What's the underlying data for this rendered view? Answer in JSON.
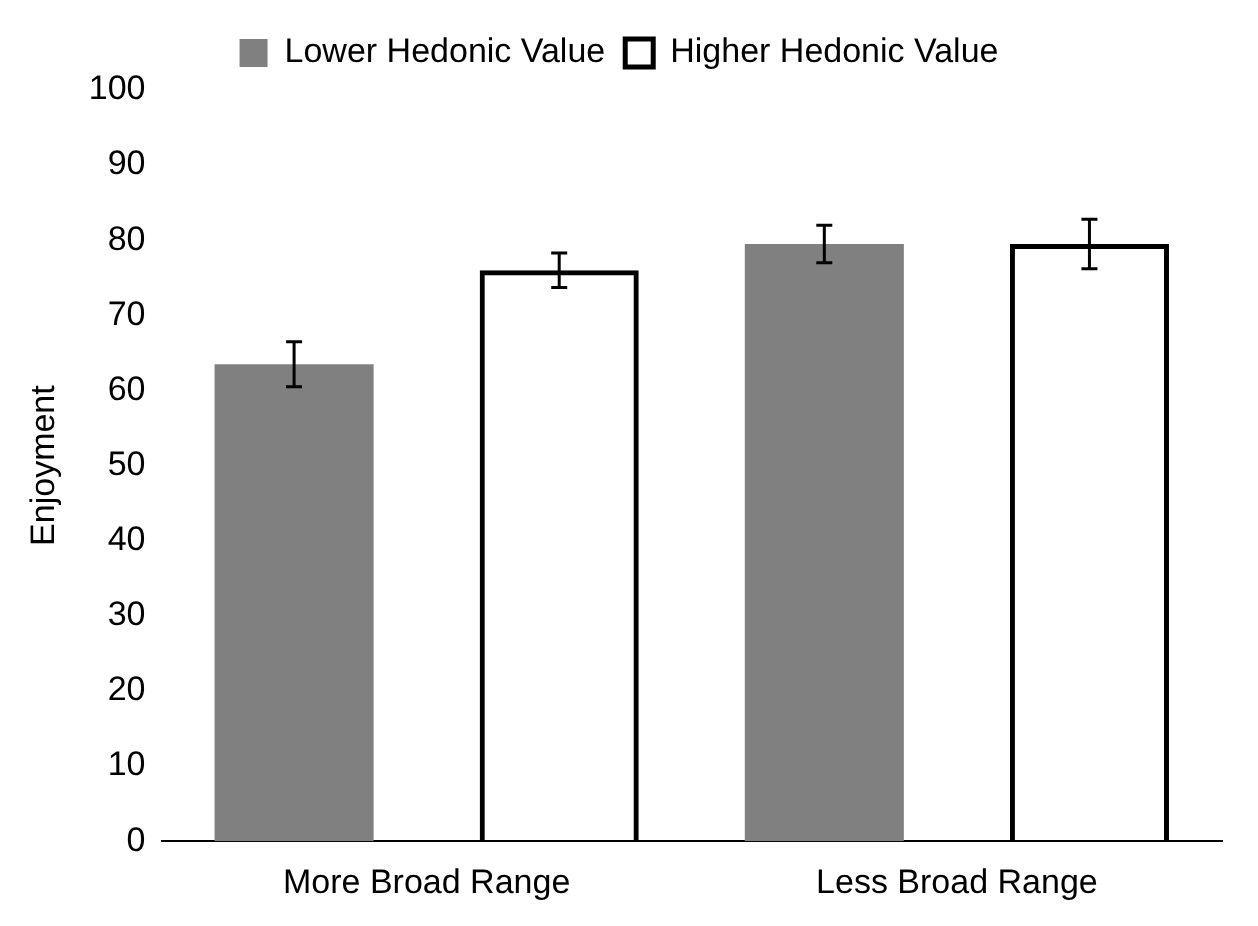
{
  "chart_data": {
    "type": "bar",
    "ylabel": "Enjoyment",
    "categories": [
      "More Broad Range",
      "Less Broad Range"
    ],
    "series": [
      {
        "name": "Lower Hedonic Value",
        "color": "#808080",
        "values": [
          63.5,
          79.5
        ],
        "errors": [
          3,
          2.5
        ]
      },
      {
        "name": "Higher Hedonic Value",
        "color": "#000000",
        "values": [
          76,
          79.5
        ],
        "errors": [
          2.3,
          3.3
        ]
      }
    ],
    "ylim": [
      0,
      100
    ],
    "yticks": [
      0,
      10,
      20,
      30,
      40,
      50,
      60,
      70,
      80,
      90,
      100
    ],
    "grid": false,
    "legend": "top"
  }
}
